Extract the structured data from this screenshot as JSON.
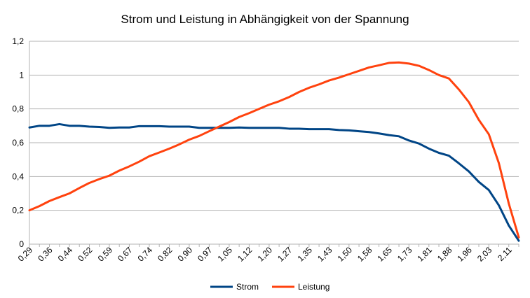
{
  "chart_data": {
    "type": "line",
    "title": "Strom und Leistung in Abhängigkeit von der Spannung",
    "xlabel": "",
    "ylabel": "",
    "ylim": [
      0,
      1.2
    ],
    "y_ticks": [
      "0",
      "0,2",
      "0,4",
      "0,6",
      "0,8",
      "1",
      "1,2"
    ],
    "y_tick_values": [
      0,
      0.2,
      0.4,
      0.6,
      0.8,
      1.0,
      1.2
    ],
    "grid": true,
    "legend_position": "bottom",
    "x": [
      0.29,
      0.33,
      0.36,
      0.4,
      0.44,
      0.48,
      0.52,
      0.56,
      0.59,
      0.63,
      0.67,
      0.71,
      0.74,
      0.78,
      0.82,
      0.86,
      0.9,
      0.93,
      0.97,
      1.01,
      1.05,
      1.09,
      1.12,
      1.16,
      1.2,
      1.24,
      1.27,
      1.31,
      1.35,
      1.39,
      1.43,
      1.46,
      1.5,
      1.54,
      1.58,
      1.62,
      1.65,
      1.69,
      1.73,
      1.77,
      1.81,
      1.84,
      1.88,
      1.92,
      1.96,
      2.0,
      2.03,
      2.07,
      2.11,
      2.15
    ],
    "x_tick_labels": [
      "0,29",
      "0,36",
      "0,44",
      "0,52",
      "0,59",
      "0,67",
      "0,74",
      "0,82",
      "0,90",
      "0,97",
      "1,05",
      "1,12",
      "1,20",
      "1,27",
      "1,35",
      "1,43",
      "1,50",
      "1,58",
      "1,65",
      "1,73",
      "1,81",
      "1,88",
      "1,96",
      "2,03",
      "2,11"
    ],
    "series": [
      {
        "name": "Strom",
        "color": "#004586",
        "values": [
          0.69,
          0.7,
          0.7,
          0.71,
          0.7,
          0.7,
          0.695,
          0.693,
          0.688,
          0.69,
          0.69,
          0.698,
          0.698,
          0.698,
          0.695,
          0.695,
          0.695,
          0.688,
          0.688,
          0.688,
          0.688,
          0.69,
          0.688,
          0.688,
          0.688,
          0.688,
          0.683,
          0.683,
          0.68,
          0.68,
          0.68,
          0.675,
          0.673,
          0.668,
          0.663,
          0.655,
          0.645,
          0.638,
          0.613,
          0.595,
          0.565,
          0.54,
          0.523,
          0.478,
          0.43,
          0.368,
          0.32,
          0.23,
          0.11,
          0.02
        ]
      },
      {
        "name": "Leistung",
        "color": "#ff420e",
        "values": [
          0.2,
          0.225,
          0.255,
          0.278,
          0.3,
          0.332,
          0.362,
          0.385,
          0.405,
          0.435,
          0.46,
          0.488,
          0.52,
          0.542,
          0.565,
          0.59,
          0.618,
          0.64,
          0.668,
          0.695,
          0.722,
          0.752,
          0.775,
          0.8,
          0.825,
          0.845,
          0.87,
          0.9,
          0.925,
          0.945,
          0.968,
          0.985,
          1.005,
          1.025,
          1.045,
          1.058,
          1.072,
          1.075,
          1.068,
          1.055,
          1.03,
          1.0,
          0.98,
          0.915,
          0.84,
          0.735,
          0.65,
          0.48,
          0.24,
          0.04
        ]
      }
    ]
  }
}
